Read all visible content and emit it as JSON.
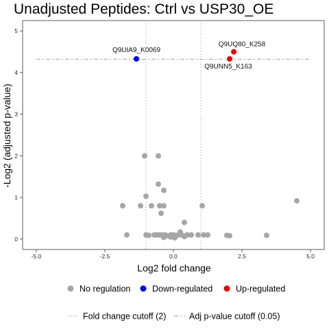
{
  "chart_data": {
    "type": "scatter",
    "title": "Unadjusted Peptides: Ctrl vs USP30_OE",
    "xlabel": "Log2 fold change",
    "ylabel": "-Log2 (adjusted p-value)",
    "xlim": [
      -5.5,
      5.5
    ],
    "ylim": [
      -0.25,
      5.25
    ],
    "xticks": [
      -5.0,
      -2.5,
      0.0,
      2.5,
      5.0
    ],
    "xtick_labels": [
      "-5.0",
      "-2.5",
      "0.0",
      "2.5",
      "5.0"
    ],
    "yticks": [
      0,
      1,
      2,
      3,
      4,
      5
    ],
    "ytick_labels": [
      "0",
      "1",
      "2",
      "3",
      "4",
      "5"
    ],
    "grid": false,
    "fold_change_cutoff_lines": [
      -1,
      1
    ],
    "pvalue_cutoff_line": 4.32,
    "colors": {
      "No regulation": "#a6a6a6",
      "Down-regulated": "#0000ee",
      "Up-regulated": "#ee0000",
      "cutoff_line": "#b0b0b0"
    },
    "series": [
      {
        "name": "No regulation",
        "points": [
          [
            -1.05,
            2.0
          ],
          [
            -0.55,
            2.0
          ],
          [
            -0.55,
            1.32
          ],
          [
            -0.35,
            1.17
          ],
          [
            -1.0,
            1.03
          ],
          [
            -1.85,
            0.8
          ],
          [
            -1.2,
            0.8
          ],
          [
            -0.8,
            0.8
          ],
          [
            -0.5,
            0.8
          ],
          [
            -0.35,
            0.8
          ],
          [
            1.05,
            0.8
          ],
          [
            -0.45,
            0.62
          ],
          [
            0.4,
            0.4
          ],
          [
            4.5,
            0.92
          ],
          [
            -1.7,
            0.1
          ],
          [
            -1.0,
            0.1
          ],
          [
            -0.9,
            0.09
          ],
          [
            -0.7,
            0.1
          ],
          [
            -0.6,
            0.1
          ],
          [
            -0.5,
            0.1
          ],
          [
            -0.4,
            0.1
          ],
          [
            -0.3,
            0.1
          ],
          [
            -0.2,
            0.08
          ],
          [
            -0.1,
            0.1
          ],
          [
            0.0,
            0.1
          ],
          [
            0.1,
            0.09
          ],
          [
            0.2,
            0.1
          ],
          [
            0.3,
            0.1
          ],
          [
            0.4,
            0.06
          ],
          [
            0.5,
            0.1
          ],
          [
            0.25,
            0.17
          ],
          [
            -0.1,
            0.05
          ],
          [
            -0.35,
            0.04
          ],
          [
            0.05,
            0.03
          ],
          [
            0.65,
            0.1
          ],
          [
            0.9,
            0.1
          ],
          [
            1.1,
            0.1
          ],
          [
            1.25,
            0.1
          ],
          [
            1.95,
            0.09
          ],
          [
            2.05,
            0.08
          ],
          [
            3.4,
            0.09
          ]
        ]
      },
      {
        "name": "Down-regulated",
        "points": [
          [
            -1.35,
            4.33
          ]
        ]
      },
      {
        "name": "Up-regulated",
        "points": [
          [
            2.2,
            4.5
          ],
          [
            2.05,
            4.33
          ]
        ]
      }
    ],
    "point_labels": [
      {
        "text": "Q9UIA9_K0069",
        "x": -1.35,
        "y": 4.33
      },
      {
        "text": "Q9UQ80_K258",
        "x": 2.2,
        "y": 4.5
      },
      {
        "text": "Q9UNN5_K163",
        "x": 2.05,
        "y": 4.33
      }
    ],
    "legend": {
      "position": "bottom",
      "items": [
        {
          "label": "No regulation",
          "color": "#a6a6a6"
        },
        {
          "label": "Down-regulated",
          "color": "#0000ee"
        },
        {
          "label": "Up-regulated",
          "color": "#ee0000"
        }
      ],
      "line_items": [
        {
          "label": "Fold change cutoff (2)",
          "style": "dotted"
        },
        {
          "label": "Adj p-value cutoff (0.05)",
          "style": "dashdot"
        }
      ]
    }
  }
}
